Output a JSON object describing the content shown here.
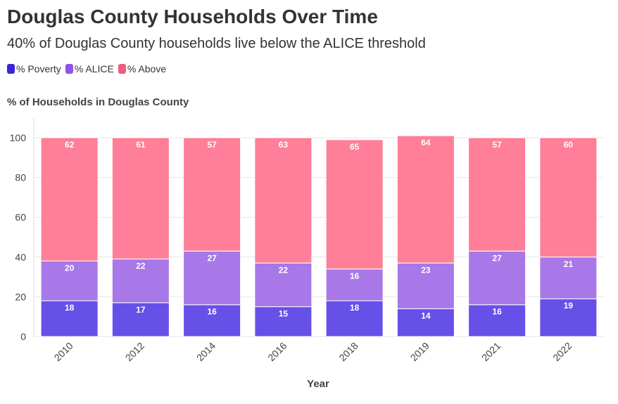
{
  "title": "Douglas County Households Over Time",
  "subtitle": "40% of Douglas County households live below the ALICE threshold",
  "colors": {
    "poverty": "#6650e8",
    "alice": "#a878e8",
    "above": "#ff7e98",
    "poverty_legend": "#3a24d8",
    "alice_legend": "#8f55e0",
    "above_legend": "#f05c80"
  },
  "chart_data": {
    "type": "bar",
    "stacked": true,
    "ylabel": "% of Households in Douglas County",
    "xlabel": "Year",
    "ylim": [
      0,
      100
    ],
    "yticks": [
      0,
      20,
      40,
      60,
      80,
      100
    ],
    "grid": true,
    "legend": "top-left",
    "categories": [
      "2010",
      "2012",
      "2014",
      "2016",
      "2018",
      "2019",
      "2021",
      "2022"
    ],
    "series": [
      {
        "name": "% Poverty",
        "values": [
          18,
          17,
          16,
          15,
          18,
          14,
          16,
          19
        ]
      },
      {
        "name": "% ALICE",
        "values": [
          20,
          22,
          27,
          22,
          16,
          23,
          27,
          21
        ]
      },
      {
        "name": "% Above",
        "values": [
          62,
          61,
          57,
          63,
          65,
          64,
          57,
          60
        ]
      }
    ]
  }
}
